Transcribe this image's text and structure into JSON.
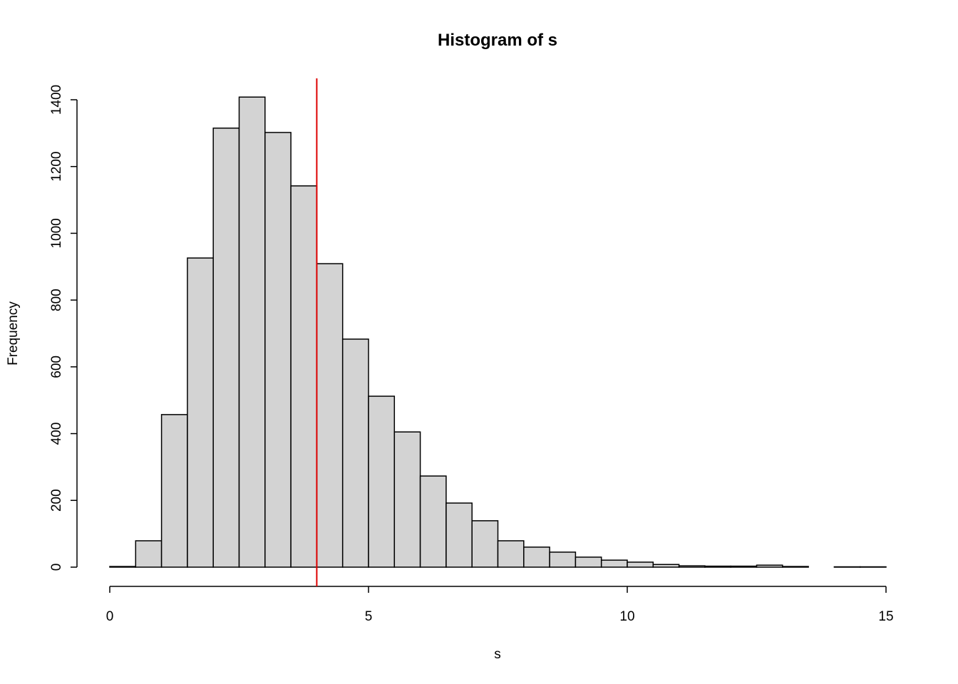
{
  "chart_data": {
    "type": "histogram",
    "title": "Histogram of s",
    "xlabel": "s",
    "ylabel": "Frequency",
    "bins": [
      0,
      0.5,
      1,
      1.5,
      2,
      2.5,
      3,
      3.5,
      4,
      4.5,
      5,
      5.5,
      6,
      6.5,
      7,
      7.5,
      8,
      8.5,
      9,
      9.5,
      10,
      10.5,
      11,
      11.5,
      12,
      12.5,
      13,
      13.5,
      14,
      14.5,
      15
    ],
    "counts": [
      2,
      79,
      457,
      926,
      1315,
      1408,
      1302,
      1142,
      909,
      683,
      512,
      405,
      273,
      192,
      139,
      79,
      60,
      45,
      30,
      21,
      15,
      8,
      4,
      3,
      3,
      6,
      2,
      0,
      1,
      1
    ],
    "color": "#d3d3d3",
    "xlim": [
      0,
      15
    ],
    "xticks": [
      0,
      5,
      10,
      15
    ],
    "ylim": [
      0,
      1400
    ],
    "yticks": [
      0,
      200,
      400,
      600,
      800,
      1000,
      1200,
      1400
    ],
    "vline": {
      "value": 4,
      "color": "#dd0000"
    }
  }
}
